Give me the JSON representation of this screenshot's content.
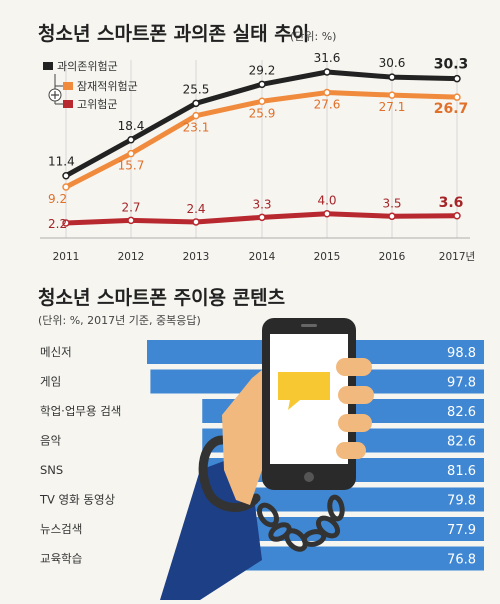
{
  "chart_data": [
    {
      "type": "line",
      "title": "청소년 스마트폰 과의존 실태 추이",
      "unit_note": "(단위: %)",
      "x": [
        "2011",
        "2012",
        "2013",
        "2014",
        "2015",
        "2016",
        "2017년"
      ],
      "series": [
        {
          "name": "과의존위험군",
          "values": [
            11.4,
            18.4,
            25.5,
            29.2,
            31.6,
            30.6,
            30.3
          ],
          "labels": [
            "11.4",
            "18.4",
            "25.5",
            "29.2",
            "31.6",
            "30.6",
            "30.3"
          ]
        },
        {
          "name": "잠재적위험군",
          "values": [
            9.2,
            15.7,
            23.1,
            25.9,
            27.6,
            27.1,
            26.7
          ],
          "labels": [
            "9.2",
            "15.7",
            "23.1",
            "25.9",
            "27.6",
            "27.1",
            "26.7"
          ]
        },
        {
          "name": "고위험군",
          "values": [
            2.2,
            2.7,
            2.4,
            3.3,
            4.0,
            3.5,
            3.6
          ],
          "labels": [
            "2.2",
            "2.7",
            "2.4",
            "3.3",
            "4.0",
            "3.5",
            "3.6"
          ]
        }
      ],
      "legend_position": "top-left",
      "grid": true
    },
    {
      "type": "bar",
      "orientation": "horizontal",
      "title": "청소년 스마트폰 주이용 콘텐츠",
      "unit_note": "(단위: %, 2017년 기준, 중복응답)",
      "categories": [
        "메신저",
        "게임",
        "학업·업무용 검색",
        "음악",
        "SNS",
        "TV 영화 동영상",
        "뉴스검색",
        "교육학습"
      ],
      "values": [
        98.8,
        97.8,
        82.6,
        82.6,
        81.6,
        79.8,
        77.9,
        76.8
      ],
      "labels": [
        "98.8",
        "97.8",
        "82.6",
        "82.6",
        "81.6",
        "79.8",
        "77.9",
        "76.8"
      ]
    }
  ],
  "colors": {
    "background": "#f6f5f0",
    "series": [
      "#222222",
      "#f08a3c",
      "#b8292f"
    ],
    "bar": "#3f87d3",
    "grid": "#cccccc",
    "text": "#333333"
  },
  "illustration": {
    "icons": [
      "hand-holding-smartphone-icon",
      "chain-handcuff-icon",
      "chat-bubble-icon"
    ]
  }
}
